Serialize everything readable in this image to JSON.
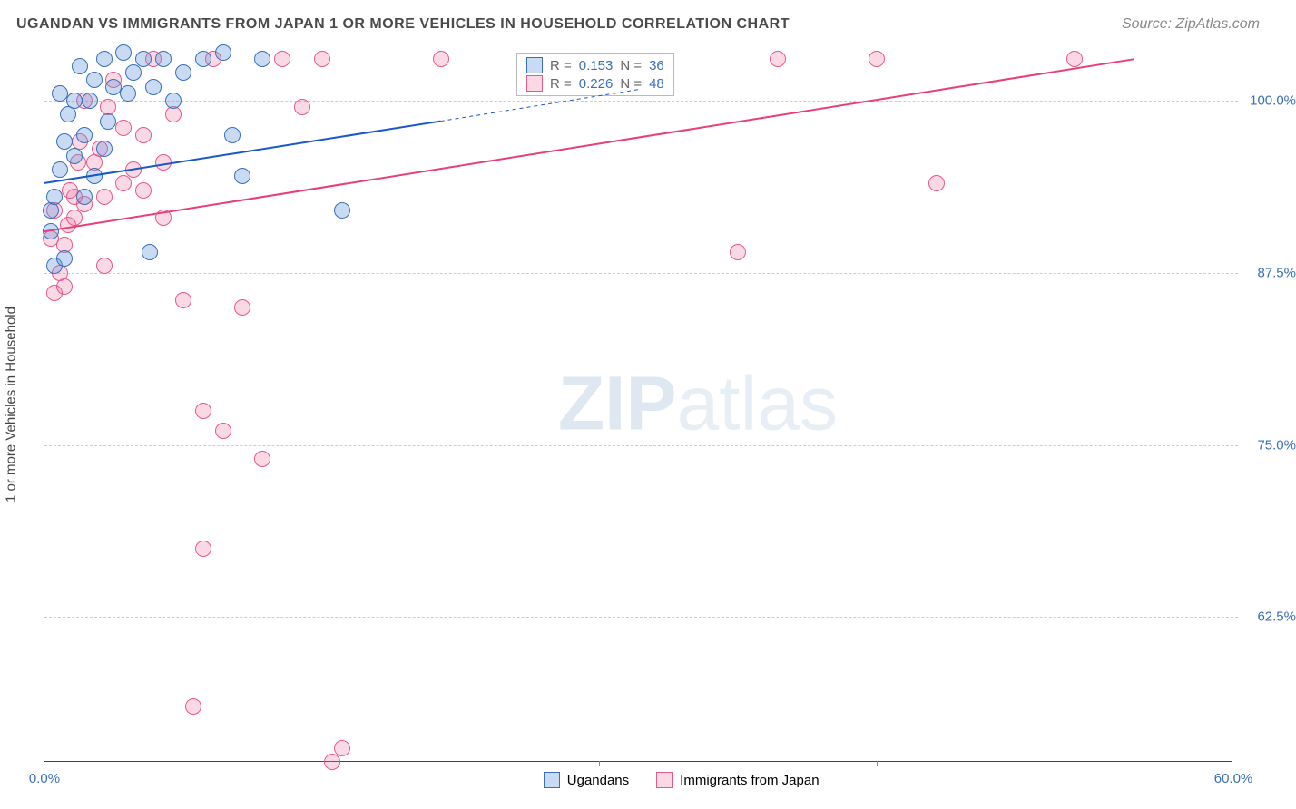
{
  "title": "UGANDAN VS IMMIGRANTS FROM JAPAN 1 OR MORE VEHICLES IN HOUSEHOLD CORRELATION CHART",
  "title_fontsize": 16,
  "title_color": "#4a4a4a",
  "source_label": "Source: ZipAtlas.com",
  "source_color": "#888888",
  "y_axis_title": "1 or more Vehicles in Household",
  "y_axis_title_color": "#444444",
  "watermark_zip": "ZIP",
  "watermark_atlas": "atlas",
  "chart": {
    "type": "scatter",
    "background_color": "#ffffff",
    "grid_color": "#cccccc",
    "axis_color": "#444444",
    "x_range": [
      0,
      60
    ],
    "y_range": [
      52,
      104
    ],
    "x_ticks": [
      {
        "pos": 0,
        "label": "0.0%",
        "color": "#3b6fb5"
      },
      {
        "pos": 28,
        "label": ""
      },
      {
        "pos": 42,
        "label": ""
      },
      {
        "pos": 60,
        "label": "60.0%",
        "color": "#3b6fb5"
      }
    ],
    "y_ticks": [
      {
        "pos": 62.5,
        "label": "62.5%",
        "color": "#3b6fb5"
      },
      {
        "pos": 75.0,
        "label": "75.0%",
        "color": "#3b6fb5"
      },
      {
        "pos": 87.5,
        "label": "87.5%",
        "color": "#3b6fb5"
      },
      {
        "pos": 100.0,
        "label": "100.0%",
        "color": "#3b6fb5"
      }
    ],
    "series_a": {
      "label": "Ugandans",
      "color_fill": "rgba(99, 148, 222, 0.35)",
      "color_stroke": "#3b6fb5",
      "points": [
        [
          0.3,
          92.0
        ],
        [
          0.5,
          93.0
        ],
        [
          0.8,
          95.0
        ],
        [
          1.0,
          97.0
        ],
        [
          1.2,
          99.0
        ],
        [
          1.5,
          100.0
        ],
        [
          1.8,
          102.5
        ],
        [
          2.0,
          97.5
        ],
        [
          2.3,
          100.0
        ],
        [
          2.5,
          101.5
        ],
        [
          3.0,
          103.0
        ],
        [
          3.2,
          98.5
        ],
        [
          3.5,
          101.0
        ],
        [
          4.0,
          103.5
        ],
        [
          4.2,
          100.5
        ],
        [
          4.5,
          102.0
        ],
        [
          5.0,
          103.0
        ],
        [
          5.3,
          89.0
        ],
        [
          5.5,
          101.0
        ],
        [
          6.0,
          103.0
        ],
        [
          6.5,
          100.0
        ],
        [
          7.0,
          102.0
        ],
        [
          8.0,
          103.0
        ],
        [
          9.0,
          103.5
        ],
        [
          9.5,
          97.5
        ],
        [
          10.0,
          94.5
        ],
        [
          11.0,
          103.0
        ],
        [
          0.5,
          88.0
        ],
        [
          1.0,
          88.5
        ],
        [
          0.3,
          90.5
        ],
        [
          15.0,
          92.0
        ],
        [
          0.8,
          100.5
        ],
        [
          1.5,
          96.0
        ],
        [
          2.0,
          93.0
        ],
        [
          2.5,
          94.5
        ],
        [
          3.0,
          96.5
        ]
      ],
      "trend": {
        "x1": 0,
        "y1": 94.0,
        "x2": 20,
        "y2": 98.5,
        "color": "#1857c9",
        "width": 2
      },
      "trend_ext": {
        "x1": 20,
        "y1": 98.5,
        "x2": 30,
        "y2": 100.8,
        "color": "#1857c9",
        "width": 1,
        "dash": true
      },
      "R": "0.153",
      "N": "36"
    },
    "series_b": {
      "label": "Immigrants from Japan",
      "color_fill": "rgba(236, 120, 160, 0.28)",
      "color_stroke": "#e45a8a",
      "points": [
        [
          0.5,
          86.0
        ],
        [
          1.0,
          86.5
        ],
        [
          1.2,
          91.0
        ],
        [
          1.5,
          93.0
        ],
        [
          1.8,
          97.0
        ],
        [
          2.0,
          100.0
        ],
        [
          2.5,
          95.5
        ],
        [
          3.0,
          93.0
        ],
        [
          3.5,
          101.5
        ],
        [
          4.0,
          98.0
        ],
        [
          4.5,
          95.0
        ],
        [
          5.0,
          97.5
        ],
        [
          5.5,
          103.0
        ],
        [
          6.0,
          95.5
        ],
        [
          6.5,
          99.0
        ],
        [
          7.0,
          85.5
        ],
        [
          8.0,
          77.5
        ],
        [
          8.5,
          103.0
        ],
        [
          9.0,
          76.0
        ],
        [
          10.0,
          85.0
        ],
        [
          12.0,
          103.0
        ],
        [
          13.0,
          99.5
        ],
        [
          14.0,
          103.0
        ],
        [
          7.5,
          56.0
        ],
        [
          8.0,
          67.5
        ],
        [
          11.0,
          74.0
        ],
        [
          14.5,
          52.0
        ],
        [
          15.0,
          53.0
        ],
        [
          20.0,
          103.0
        ],
        [
          37.0,
          103.0
        ],
        [
          42.0,
          103.0
        ],
        [
          52.0,
          103.0
        ],
        [
          35.0,
          89.0
        ],
        [
          45.0,
          94.0
        ],
        [
          0.3,
          90.0
        ],
        [
          1.0,
          89.5
        ],
        [
          1.5,
          91.5
        ],
        [
          2.0,
          92.5
        ],
        [
          2.8,
          96.5
        ],
        [
          3.2,
          99.5
        ],
        [
          4.0,
          94.0
        ],
        [
          5.0,
          93.5
        ],
        [
          6.0,
          91.5
        ],
        [
          0.5,
          92.0
        ],
        [
          1.3,
          93.5
        ],
        [
          1.7,
          95.5
        ],
        [
          0.8,
          87.5
        ],
        [
          3.0,
          88.0
        ]
      ],
      "trend": {
        "x1": 0,
        "y1": 90.5,
        "x2": 55,
        "y2": 103.0,
        "color": "#e83e7a",
        "width": 2
      },
      "R": "0.226",
      "N": "48"
    }
  },
  "legend": {
    "R_label": "R =",
    "N_label": "N =",
    "value_color": "#3b6fb5",
    "text_color": "#666666"
  }
}
